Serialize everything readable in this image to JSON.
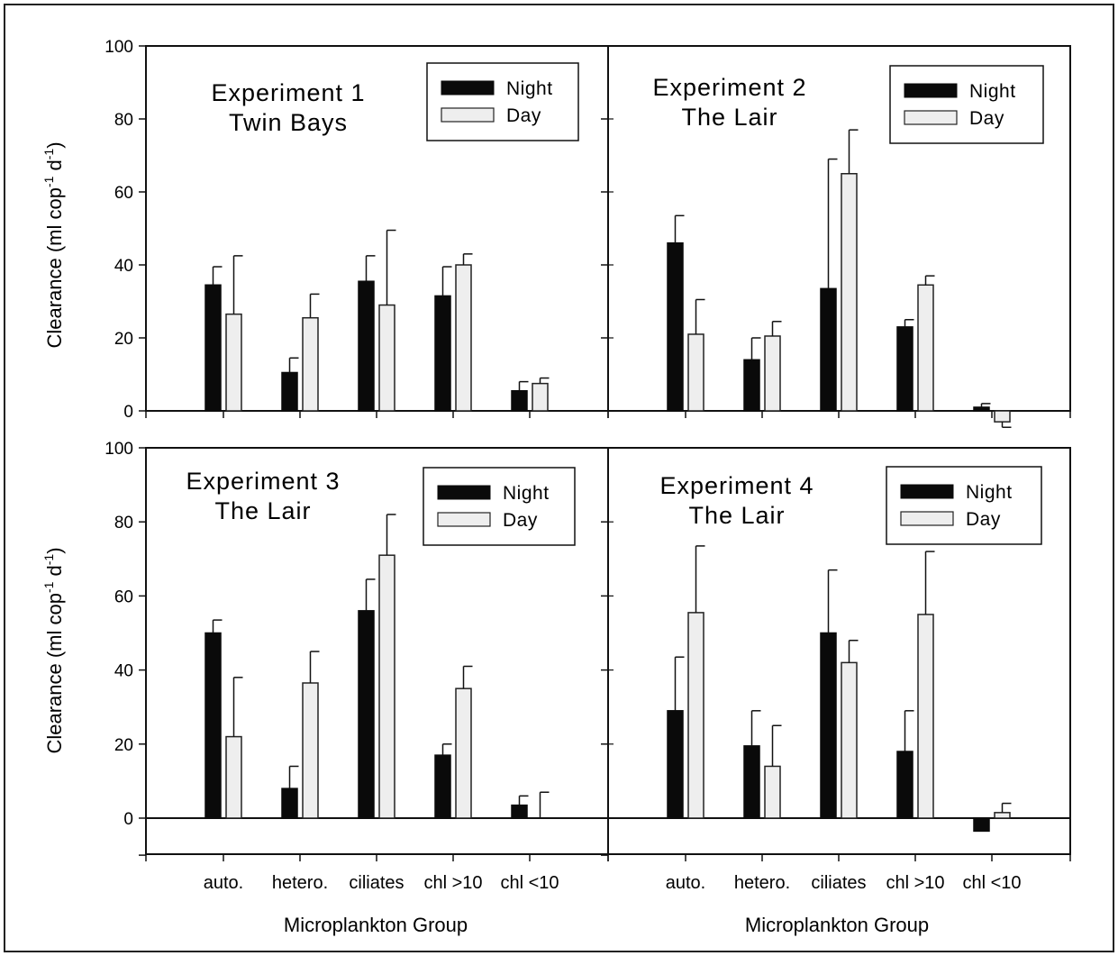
{
  "chart_data": [
    {
      "type": "bar",
      "title": "Experiment 1",
      "subtitle": "Twin Bays",
      "ylabel": "",
      "xlabel": "",
      "ylim": [
        0,
        100
      ],
      "yticks": [
        "0",
        "20",
        "40",
        "60",
        "80",
        "100"
      ],
      "categories": [
        "auto.",
        "hetero.",
        "ciliates",
        "chl >10",
        "chl <10"
      ],
      "series": [
        {
          "name": "Night",
          "values": [
            34.5,
            10.5,
            35.5,
            31.5,
            5.5
          ],
          "errors": [
            5,
            4,
            7,
            8,
            2.5
          ]
        },
        {
          "name": "Day",
          "values": [
            26.5,
            25.5,
            29,
            40,
            7.5
          ],
          "errors": [
            16,
            6.5,
            20.5,
            3,
            1.5
          ]
        }
      ],
      "legend_position": "top-right"
    },
    {
      "type": "bar",
      "title": "Experiment 2",
      "subtitle": "The Lair",
      "ylabel": "",
      "xlabel": "",
      "ylim": [
        0,
        100
      ],
      "categories": [
        "auto.",
        "hetero.",
        "ciliates",
        "chl >10",
        "chl <10"
      ],
      "series": [
        {
          "name": "Night",
          "values": [
            46,
            14,
            33.5,
            23,
            1
          ],
          "errors": [
            7.5,
            6,
            35.5,
            2,
            1
          ]
        },
        {
          "name": "Day",
          "values": [
            21,
            20.5,
            65,
            34.5,
            -3
          ],
          "errors": [
            9.5,
            4,
            12,
            2.5,
            1.5
          ]
        }
      ],
      "legend_position": "top-right"
    },
    {
      "type": "bar",
      "title": "Experiment 3",
      "subtitle": "The Lair",
      "ylabel": "",
      "xlabel": "",
      "ylim": [
        -10,
        100
      ],
      "yticks": [
        "0",
        "20",
        "40",
        "60",
        "80",
        "100"
      ],
      "categories": [
        "auto.",
        "hetero.",
        "ciliates",
        "chl >10",
        "chl <10"
      ],
      "series": [
        {
          "name": "Night",
          "values": [
            50,
            8,
            56,
            17,
            3.5
          ],
          "errors": [
            3.5,
            6,
            8.5,
            3,
            2.5
          ]
        },
        {
          "name": "Day",
          "values": [
            22,
            36.5,
            71,
            35,
            0
          ],
          "errors": [
            16,
            8.5,
            11,
            6,
            7
          ]
        }
      ],
      "legend_position": "top-right"
    },
    {
      "type": "bar",
      "title": "Experiment 4",
      "subtitle": "The Lair",
      "ylabel": "",
      "xlabel": "",
      "ylim": [
        -10,
        100
      ],
      "categories": [
        "auto.",
        "hetero.",
        "ciliates",
        "chl >10",
        "chl <10"
      ],
      "series": [
        {
          "name": "Night",
          "values": [
            29,
            19.5,
            50,
            18,
            -3.5
          ],
          "errors": [
            14.5,
            9.5,
            17,
            11,
            0
          ]
        },
        {
          "name": "Day",
          "values": [
            55.5,
            14,
            42,
            55,
            1.5
          ],
          "errors": [
            18,
            11,
            6,
            17,
            2.5
          ]
        }
      ],
      "legend_position": "top-right"
    }
  ],
  "axes": {
    "ylabel_prefix": "Clearance (ml cop",
    "ylabel_sup1": "-1",
    "ylabel_mid": " d",
    "ylabel_sup2": "-1",
    "ylabel_suffix": ")",
    "xlabel": "Microplankton Group"
  },
  "legend": {
    "night": "Night",
    "day": "Day"
  },
  "colors": {
    "night": "#0a0a0a",
    "day": "#eeeeee",
    "frame": "#111111"
  }
}
